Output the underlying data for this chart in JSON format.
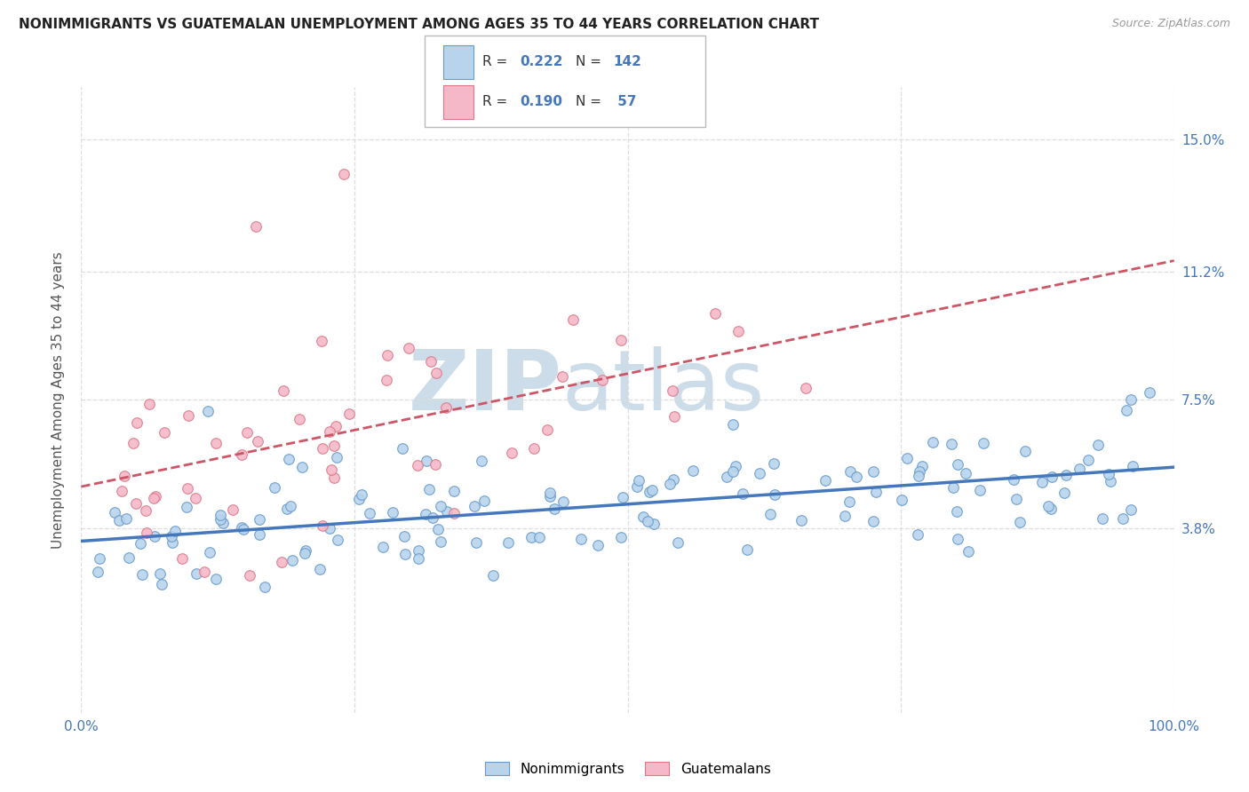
{
  "title": "NONIMMIGRANTS VS GUATEMALAN UNEMPLOYMENT AMONG AGES 35 TO 44 YEARS CORRELATION CHART",
  "source": "Source: ZipAtlas.com",
  "ylabel": "Unemployment Among Ages 35 to 44 years",
  "right_ytick_vals": [
    3.8,
    7.5,
    11.2,
    15.0
  ],
  "right_ytick_labels": [
    "3.8%",
    "7.5%",
    "11.2%",
    "15.0%"
  ],
  "xlim": [
    0,
    100
  ],
  "ylim": [
    -1.5,
    16.5
  ],
  "legend_r_blue": "0.222",
  "legend_n_blue": "142",
  "legend_r_pink": "0.190",
  "legend_n_pink": " 57",
  "blue_fill": "#b8d4ec",
  "blue_edge": "#6699cc",
  "pink_fill": "#f5b8c8",
  "pink_edge": "#dd7788",
  "trend_blue_color": "#4477bb",
  "trend_pink_color": "#cc5566",
  "watermark_color": "#ccdce8",
  "watermark_text": "ZIPatlas",
  "grid_color": "#dddddd",
  "title_color": "#222222",
  "axis_label_color": "#4477bb",
  "ylabel_color": "#555555",
  "source_color": "#999999"
}
